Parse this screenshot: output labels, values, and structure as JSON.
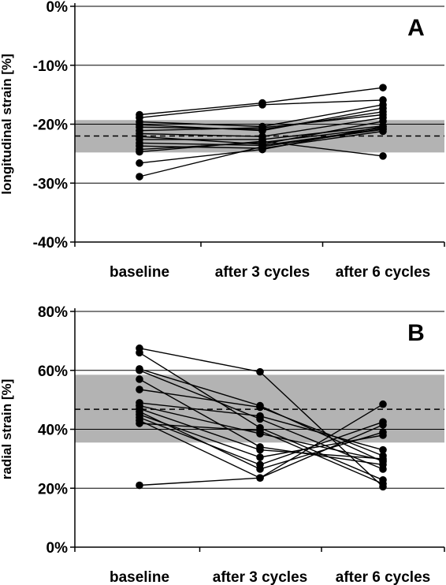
{
  "chart_data": [
    {
      "type": "line",
      "panel_label": "A",
      "ylabel": "longitudinal strain [%]",
      "categories": [
        "baseline",
        "after 3 cycles",
        "after 6 cycles"
      ],
      "ylim": [
        -40,
        0
      ],
      "yticks": [
        0,
        -10,
        -20,
        -30,
        -40
      ],
      "ytick_labels": [
        "0%",
        "-10%",
        "-20%",
        "-30%",
        "-40%"
      ],
      "grid": "horizontal",
      "reference_band": [
        -24.8,
        -19.3
      ],
      "reference_mean": -22.0,
      "colors": {
        "band": "#b3b3b3",
        "line": "#000000"
      },
      "series": [
        {
          "values": [
            -18.4,
            -16.4,
            -13.8
          ]
        },
        {
          "values": [
            -18.9,
            -16.7,
            -15.9
          ]
        },
        {
          "values": [
            -19.6,
            -20.4,
            -16.7
          ]
        },
        {
          "values": [
            -20.1,
            -21.1,
            -17.3
          ]
        },
        {
          "values": [
            -20.5,
            -20.9,
            -17.9
          ]
        },
        {
          "values": [
            -21.1,
            -20.6,
            -18.4
          ]
        },
        {
          "values": [
            -21.6,
            -22.1,
            -18.9
          ]
        },
        {
          "values": [
            -22.1,
            -23.4,
            -19.5
          ]
        },
        {
          "values": [
            -22.6,
            -22.6,
            -20.3
          ]
        },
        {
          "values": [
            -23.2,
            -23.6,
            -20.8
          ]
        },
        {
          "values": [
            -23.7,
            -24.1,
            -21.2
          ]
        },
        {
          "values": [
            -24.3,
            -23.1,
            -20.6
          ]
        },
        {
          "values": [
            -24.7,
            -22.9,
            -25.4
          ]
        },
        {
          "values": [
            -26.6,
            -24.3,
            -20.4
          ]
        },
        {
          "values": [
            -28.9,
            -23.8,
            -20.9
          ]
        }
      ]
    },
    {
      "type": "line",
      "panel_label": "B",
      "ylabel": "radial strain [%]",
      "categories": [
        "baseline",
        "after 3 cycles",
        "after 6 cycles"
      ],
      "ylim": [
        0,
        80
      ],
      "yticks": [
        80,
        60,
        40,
        20,
        0
      ],
      "ytick_labels": [
        "80%",
        "60%",
        "40%",
        "20%",
        "0%"
      ],
      "grid": "horizontal",
      "reference_band": [
        35.5,
        58.5
      ],
      "reference_mean": 46.8,
      "colors": {
        "band": "#b3b3b3",
        "line": "#000000"
      },
      "series": [
        {
          "values": [
            67.5,
            59.5,
            20.5
          ]
        },
        {
          "values": [
            66.0,
            40.5,
            22.8
          ]
        },
        {
          "values": [
            60.5,
            48.0,
            29.0
          ]
        },
        {
          "values": [
            60.0,
            43.5,
            26.5
          ]
        },
        {
          "values": [
            57.0,
            34.0,
            28.0
          ]
        },
        {
          "values": [
            53.5,
            47.5,
            31.0
          ]
        },
        {
          "values": [
            49.0,
            44.5,
            33.0
          ]
        },
        {
          "values": [
            48.0,
            38.5,
            29.5
          ]
        },
        {
          "values": [
            47.0,
            33.0,
            30.0
          ]
        },
        {
          "values": [
            46.0,
            26.5,
            39.0
          ]
        },
        {
          "values": [
            45.0,
            30.5,
            38.0
          ]
        },
        {
          "values": [
            44.0,
            28.0,
            42.5
          ]
        },
        {
          "values": [
            43.0,
            23.5,
            41.5
          ]
        },
        {
          "values": [
            42.0,
            39.5,
            21.5
          ]
        },
        {
          "values": [
            21.0,
            23.5,
            48.5
          ]
        }
      ]
    }
  ]
}
